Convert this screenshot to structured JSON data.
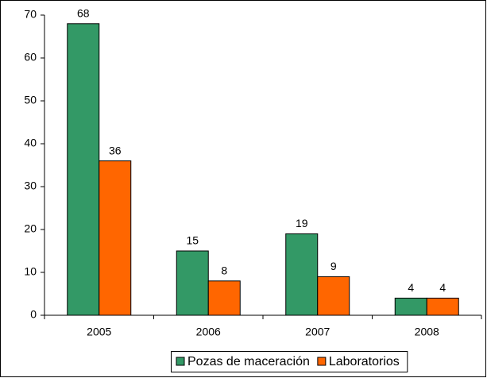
{
  "chart_data": {
    "type": "bar",
    "categories": [
      "2005",
      "2006",
      "2007",
      "2008"
    ],
    "series": [
      {
        "name": "Pozas de maceración",
        "color": "#339966",
        "values": [
          68,
          15,
          19,
          4
        ]
      },
      {
        "name": "Laboratorios",
        "color": "#ff6600",
        "values": [
          36,
          8,
          9,
          4
        ]
      }
    ],
    "ylim": [
      0,
      70
    ],
    "yticks": [
      0,
      10,
      20,
      30,
      40,
      50,
      60,
      70
    ],
    "grid": false,
    "legend": "bottom"
  }
}
